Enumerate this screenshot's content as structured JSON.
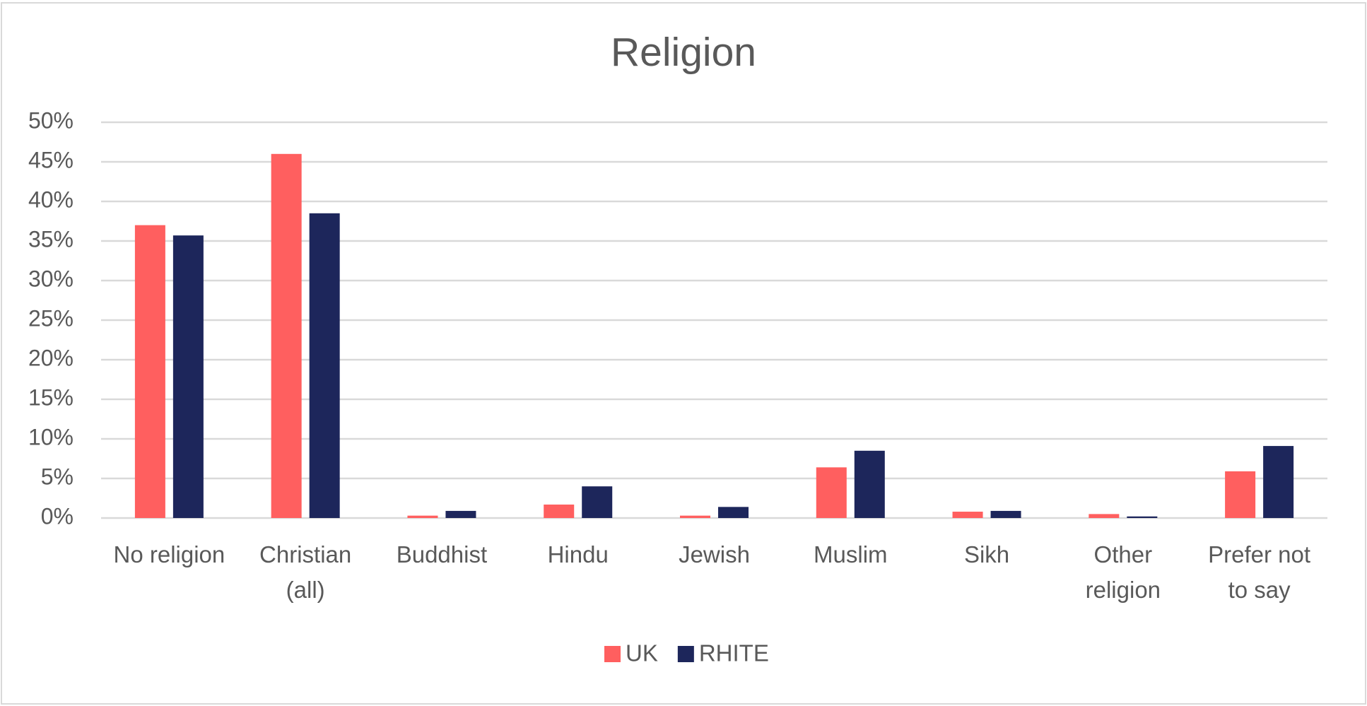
{
  "chart_data": {
    "type": "bar",
    "title": "Religion",
    "categories": [
      "No religion",
      "Christian (all)",
      "Buddhist",
      "Hindu",
      "Jewish",
      "Muslim",
      "Sikh",
      "Other religion",
      "Prefer not to say"
    ],
    "series": [
      {
        "name": "UK",
        "color": "#ff5f5f",
        "values": [
          37.0,
          46.0,
          0.3,
          1.7,
          0.3,
          6.4,
          0.8,
          0.5,
          5.9
        ]
      },
      {
        "name": "RHITE",
        "color": "#1d265b",
        "values": [
          35.7,
          38.5,
          0.9,
          4.0,
          1.4,
          8.5,
          0.9,
          0.2,
          9.1
        ]
      }
    ],
    "ylim": [
      0,
      50
    ],
    "yticks": [
      {
        "value": 0,
        "label": "0%"
      },
      {
        "value": 5,
        "label": "5%"
      },
      {
        "value": 10,
        "label": "10%"
      },
      {
        "value": 15,
        "label": "15%"
      },
      {
        "value": 20,
        "label": "20%"
      },
      {
        "value": 25,
        "label": "25%"
      },
      {
        "value": 30,
        "label": "30%"
      },
      {
        "value": 35,
        "label": "35%"
      },
      {
        "value": 40,
        "label": "40%"
      },
      {
        "value": 45,
        "label": "45%"
      },
      {
        "value": 50,
        "label": "50%"
      }
    ],
    "grid": true,
    "legend": "bottom"
  }
}
